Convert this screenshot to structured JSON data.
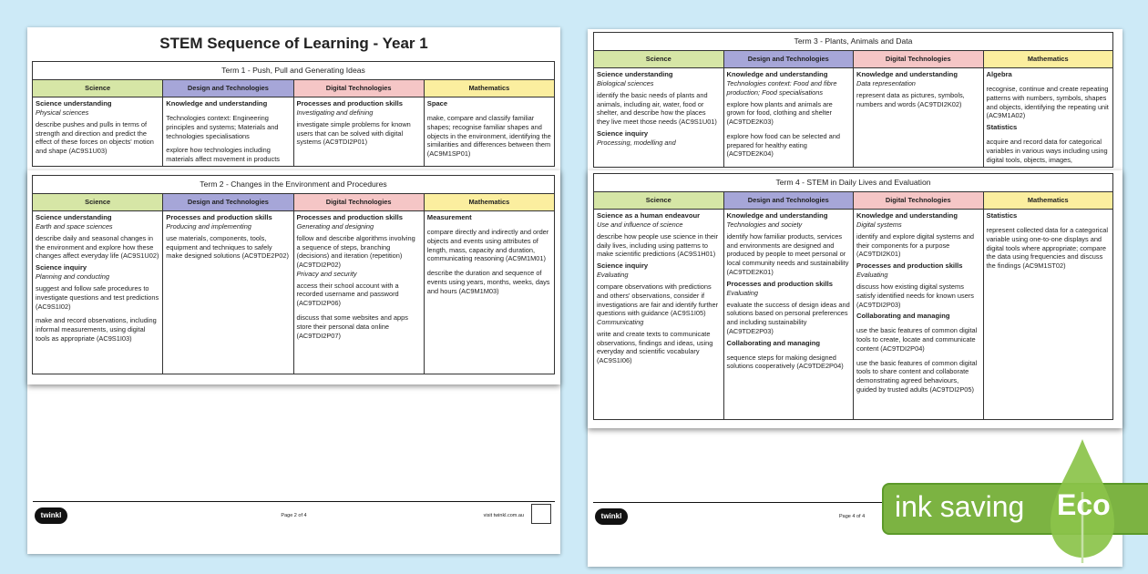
{
  "subjects": [
    "Science",
    "Design and Technologies",
    "Digital Technologies",
    "Mathematics"
  ],
  "colors": {
    "science": "#d6e6a6",
    "design": "#a6a6d8",
    "digital": "#f5c6c6",
    "math": "#fbee9f",
    "eco_green": "#7cb342",
    "background": "#cdeaf7"
  },
  "left_page": {
    "title": "STEM Sequence of Learning - Year 1",
    "page": "Page 2 of 4",
    "visit": "visit twinkl.com.au",
    "logo": "twinkl"
  },
  "right_page": {
    "page": "Page 4 of 4",
    "logo": "twinkl"
  },
  "eco": {
    "label": "ink saving",
    "word": "Eco",
    "icon": "leaf-drop-icon"
  },
  "terms": [
    {
      "title": "Term 1 - Push, Pull and Generating Ideas",
      "cells": [
        [
          [
            "h",
            "Science understanding"
          ],
          [
            "i",
            "Physical sciences"
          ],
          [
            "t",
            "describe pushes and pulls in terms of strength and direction and predict the effect of these forces on objects' motion and shape (AC9S1U03)"
          ]
        ],
        [
          [
            "h",
            "Knowledge and understanding"
          ],
          [
            "t",
            "Technologies context: Engineering principles and systems; Materials and technologies specialisations"
          ],
          [
            "t",
            "explore how technologies including materials affect movement in products"
          ]
        ],
        [
          [
            "h",
            "Processes and production skills"
          ],
          [
            "i",
            "Investigating and defining"
          ],
          [
            "t",
            "investigate simple problems for known users that can be solved with digital systems (AC9TDI2P01)"
          ]
        ],
        [
          [
            "h",
            "Space"
          ],
          [
            "t",
            "make, compare and classify familiar shapes; recognise familiar shapes and objects in the environment, identifying the similarities and differences between them (AC9M1SP01)"
          ]
        ]
      ]
    },
    {
      "title": "Term 2 - Changes in the Environment and Procedures",
      "cells": [
        [
          [
            "h",
            "Science understanding"
          ],
          [
            "i",
            "Earth and space sciences"
          ],
          [
            "t",
            "describe daily and seasonal changes in the environment and explore how these changes affect everyday life (AC9S1U02)"
          ],
          [
            "h",
            "Science inquiry"
          ],
          [
            "i",
            "Planning and conducting"
          ],
          [
            "t",
            "suggest and follow safe procedures to investigate questions and test predictions (AC9S1I02)"
          ],
          [
            "t",
            "make and record observations, including informal measurements, using digital tools as appropriate (AC9S1I03)"
          ]
        ],
        [
          [
            "h",
            "Processes and production skills"
          ],
          [
            "i",
            "Producing and implementing"
          ],
          [
            "t",
            "use materials, components, tools, equipment and techniques to safely make designed solutions (AC9TDE2P02)"
          ]
        ],
        [
          [
            "h",
            "Processes and production skills"
          ],
          [
            "i",
            "Generating and designing"
          ],
          [
            "t",
            "follow and describe algorithms involving a sequence of steps, branching (decisions) and iteration (repetition) (AC9TDI2P02)"
          ],
          [
            "i",
            "Privacy and security"
          ],
          [
            "t",
            "access their school account with a recorded username and password (AC9TDI2P06)"
          ],
          [
            "t",
            "discuss that some websites and apps store their personal data online (AC9TDI2P07)"
          ]
        ],
        [
          [
            "h",
            "Measurement"
          ],
          [
            "t",
            "compare directly and indirectly and order objects and events using attributes of length, mass, capacity and duration, communicating reasoning (AC9M1M01)"
          ],
          [
            "t",
            "describe the duration and sequence of events using years, months, weeks, days and hours (AC9M1M03)"
          ]
        ]
      ]
    },
    {
      "title": "Term 3 - Plants, Animals and Data",
      "cells": [
        [
          [
            "h",
            "Science understanding"
          ],
          [
            "i",
            "Biological sciences"
          ],
          [
            "t",
            "identify the basic needs of plants and animals, including air, water, food or shelter, and describe how the places they live meet those needs (AC9S1U01)"
          ],
          [
            "h",
            "Science inquiry"
          ],
          [
            "i",
            "Processing, modelling and"
          ]
        ],
        [
          [
            "h",
            "Knowledge and understanding"
          ],
          [
            "i",
            "Technologies context: Food and fibre production; Food specialisations"
          ],
          [
            "t",
            "explore how plants and animals are grown for food, clothing and shelter (AC9TDE2K03)"
          ],
          [
            "t",
            "explore how food can be selected and prepared for healthy eating (AC9TDE2K04)"
          ]
        ],
        [
          [
            "h",
            "Knowledge and understanding"
          ],
          [
            "i",
            "Data representation"
          ],
          [
            "t",
            "represent data as pictures, symbols, numbers and words (AC9TDI2K02)"
          ]
        ],
        [
          [
            "h",
            "Algebra"
          ],
          [
            "t",
            "recognise, continue and create repeating patterns with numbers, symbols, shapes and objects, identifying the repeating unit (AC9M1A02)"
          ],
          [
            "h",
            "Statistics"
          ],
          [
            "t",
            "acquire and record data for categorical variables in various ways including using digital tools, objects, images,"
          ]
        ]
      ]
    },
    {
      "title": "Term 4 - STEM in Daily Lives and Evaluation",
      "cells": [
        [
          [
            "h",
            "Science as a human endeavour"
          ],
          [
            "i",
            "Use and influence of science"
          ],
          [
            "t",
            "describe how people use science in their daily lives, including using patterns to make scientific predictions (AC9S1H01)"
          ],
          [
            "h",
            "Science inquiry"
          ],
          [
            "i",
            "Evaluating"
          ],
          [
            "t",
            "compare observations with predictions and others' observations, consider if investigations are fair and identify further questions with guidance (AC9S1I05)"
          ],
          [
            "i",
            "Communicating"
          ],
          [
            "t",
            "write and create texts to communicate observations, findings and ideas, using everyday and scientific vocabulary (AC9S1I06)"
          ]
        ],
        [
          [
            "h",
            "Knowledge and understanding"
          ],
          [
            "i",
            "Technologies and society"
          ],
          [
            "t",
            "identify how familiar products, services and environments are designed and produced by people to meet personal or local community needs and sustainability (AC9TDE2K01)"
          ],
          [
            "h",
            "Processes and production skills"
          ],
          [
            "i",
            "Evaluating"
          ],
          [
            "t",
            "evaluate the success of design ideas and solutions based on personal preferences and including sustainability (AC9TDE2P03)"
          ],
          [
            "h",
            "Collaborating and managing"
          ],
          [
            "t",
            "sequence steps for making designed solutions cooperatively (AC9TDE2P04)"
          ]
        ],
        [
          [
            "h",
            "Knowledge and understanding"
          ],
          [
            "i",
            "Digital systems"
          ],
          [
            "t",
            "identify and explore digital systems and their components for a purpose (AC9TDI2K01)"
          ],
          [
            "h",
            "Processes and production skills"
          ],
          [
            "i",
            "Evaluating"
          ],
          [
            "t",
            "discuss how existing digital systems satisfy identified needs for known users (AC9TDI2P03)"
          ],
          [
            "h",
            "Collaborating and managing"
          ],
          [
            "t",
            "use the basic features of common digital tools to create, locate and communicate content (AC9TDI2P04)"
          ],
          [
            "t",
            "use the basic features of common digital tools to share content and collaborate demonstrating agreed behaviours, guided by trusted adults (AC9TDI2P05)"
          ]
        ],
        [
          [
            "h",
            "Statistics"
          ],
          [
            "t",
            "represent collected data for a categorical variable using one-to-one displays and digital tools where appropriate; compare the data using frequencies and discuss the findings (AC9M1ST02)"
          ]
        ]
      ]
    }
  ]
}
